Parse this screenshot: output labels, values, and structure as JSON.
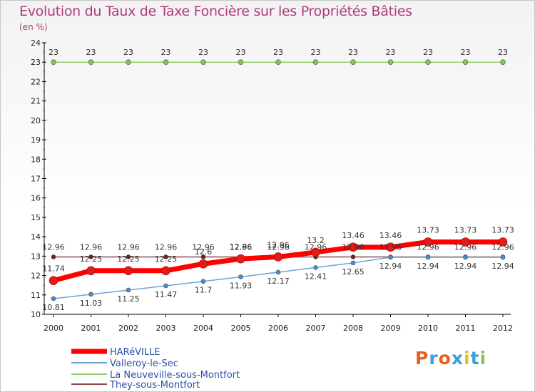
{
  "chart_data": {
    "type": "line",
    "title": "Evolution du Taux de Taxe Foncière sur les Propriétés Bâties",
    "subtitle": "(en %)",
    "xlabel": "",
    "ylabel": "",
    "x": [
      "2000",
      "2001",
      "2002",
      "2003",
      "2004",
      "2005",
      "2006",
      "2007",
      "2008",
      "2009",
      "2010",
      "2011",
      "2012"
    ],
    "ylim": [
      10,
      24
    ],
    "yticks": [
      10,
      11,
      12,
      13,
      14,
      15,
      16,
      17,
      18,
      19,
      20,
      21,
      22,
      23,
      24
    ],
    "grid": false,
    "legend_position": "bottom-left",
    "series": [
      {
        "name": "HARéVILLE",
        "color": "#ff0000",
        "values": [
          11.74,
          12.25,
          12.25,
          12.25,
          12.6,
          12.86,
          12.96,
          13.2,
          13.46,
          13.46,
          13.73,
          13.73,
          13.73
        ],
        "labels": [
          "11.74",
          "12.25",
          "12.25",
          "12.25",
          "12.6",
          "12.86",
          "12.96",
          "13.2",
          "13.46",
          "13.46",
          "13.73",
          "13.73",
          "13.73"
        ]
      },
      {
        "name": "Valleroy-le-Sec",
        "color": "#6fa3d6",
        "values": [
          10.81,
          11.03,
          11.25,
          11.47,
          11.7,
          11.93,
          12.17,
          12.41,
          12.65,
          12.94,
          12.94,
          12.94,
          12.94
        ],
        "labels": [
          "10.81",
          "11.03",
          "11.25",
          "11.47",
          "11.7",
          "11.93",
          "12.17",
          "12.41",
          "12.65",
          "12.94",
          "12.94",
          "12.94",
          "12.94"
        ]
      },
      {
        "name": "La Neuveville-sous-Montfort",
        "color": "#8fd06a",
        "values": [
          23,
          23,
          23,
          23,
          23,
          23,
          23,
          23,
          23,
          23,
          23,
          23,
          23
        ],
        "labels": [
          "23",
          "23",
          "23",
          "23",
          "23",
          "23",
          "23",
          "23",
          "23",
          "23",
          "23",
          "23",
          "23"
        ]
      },
      {
        "name": "They-sous-Montfort",
        "color": "#8a4a4a",
        "values": [
          12.96,
          12.96,
          12.96,
          12.96,
          12.96,
          12.96,
          12.96,
          12.96,
          12.96,
          12.96,
          12.96,
          12.96,
          12.96
        ],
        "labels": [
          "12.96",
          "12.96",
          "12.96",
          "12.96",
          "12.96",
          "12.96",
          "12.96",
          "12.96",
          "12.96",
          "12.96",
          "12.96",
          "12.96",
          "12.96"
        ]
      }
    ]
  },
  "logo": {
    "text": "Proxiti"
  }
}
